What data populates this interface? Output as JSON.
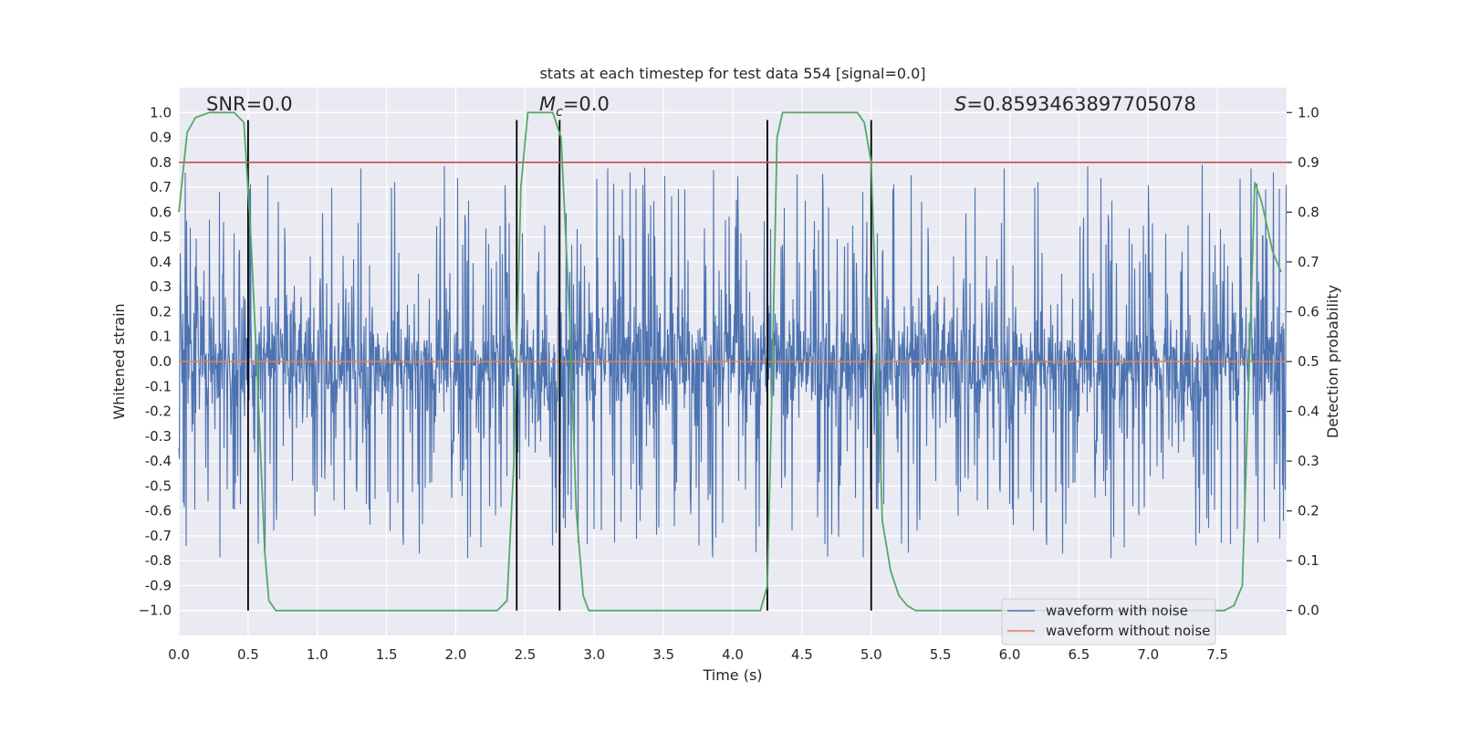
{
  "chart_data": {
    "type": "line",
    "title": "stats at each timestep for test data 554 [signal=0.0]",
    "xlabel": "Time (s)",
    "ylabel": "Whitened strain",
    "y2label": "Detection probability",
    "xlim": [
      0.0,
      8.0
    ],
    "ylim": [
      -1.1,
      1.1
    ],
    "y2lim": [
      -0.05,
      1.05
    ],
    "xticks": [
      "0.0",
      "0.5",
      "1.0",
      "1.5",
      "2.0",
      "2.5",
      "3.0",
      "3.5",
      "4.0",
      "4.5",
      "5.0",
      "5.5",
      "6.0",
      "6.5",
      "7.0",
      "7.5"
    ],
    "yticks": [
      "1.0",
      "0.9",
      "0.8",
      "0.7",
      "0.6",
      "0.5",
      "0.4",
      "0.3",
      "0.2",
      "0.1",
      "0.0",
      "-0.1",
      "-0.2",
      "-0.3",
      "-0.4",
      "-0.5",
      "-0.6",
      "-0.7",
      "-0.8",
      "-0.9",
      "−1.0"
    ],
    "y2ticks": [
      "1.0",
      "0.9",
      "0.8",
      "0.7",
      "0.6",
      "0.5",
      "0.4",
      "0.3",
      "0.2",
      "0.1",
      "0.0"
    ],
    "grid": true,
    "legend": {
      "placement": "lower-right",
      "entries": [
        {
          "name": "waveform with noise",
          "color": "#4c72b0"
        },
        {
          "name": "waveform without noise",
          "color": "#dd8452"
        }
      ]
    },
    "annotations": {
      "snr": "SNR=0.0",
      "mc_symbol": "M",
      "mc_sub": "c",
      "mc_value": "=0.0",
      "s_symbol": "S",
      "s_value": "=0.8593463897705078"
    },
    "series": [
      {
        "name": "waveform with noise",
        "color": "#4c72b0",
        "kind": "noise",
        "seed": 554,
        "core_amplitude": 0.36,
        "peak_amplitude_range": [
          0.5,
          0.8
        ],
        "y_range": [
          -1.0,
          0.95
        ]
      },
      {
        "name": "waveform without noise",
        "color": "#dd8452",
        "x": [
          0.0,
          8.0
        ],
        "y": [
          0.0,
          0.0
        ]
      },
      {
        "name": "detection probability",
        "axis": "right",
        "color": "#55a868",
        "x": [
          0.0,
          0.06,
          0.12,
          0.22,
          0.3,
          0.4,
          0.47,
          0.52,
          0.57,
          0.62,
          0.65,
          0.7,
          0.75,
          2.3,
          2.37,
          2.42,
          2.47,
          2.52,
          2.56,
          2.7,
          2.76,
          2.82,
          2.87,
          2.92,
          2.96,
          3.0,
          4.2,
          4.25,
          4.28,
          4.32,
          4.36,
          4.42,
          4.9,
          4.95,
          5.0,
          5.04,
          5.08,
          5.14,
          5.2,
          5.26,
          5.32,
          7.55,
          7.62,
          7.68,
          7.72,
          7.77,
          7.82,
          7.9,
          7.96
        ],
        "y": [
          0.8,
          0.96,
          0.99,
          1.0,
          1.0,
          1.0,
          0.98,
          0.75,
          0.45,
          0.12,
          0.02,
          0.0,
          0.0,
          0.0,
          0.02,
          0.3,
          0.85,
          1.0,
          1.0,
          1.0,
          0.95,
          0.6,
          0.2,
          0.03,
          0.0,
          0.0,
          0.0,
          0.05,
          0.4,
          0.95,
          1.0,
          1.0,
          1.0,
          0.98,
          0.9,
          0.55,
          0.18,
          0.08,
          0.03,
          0.01,
          0.0,
          0.0,
          0.01,
          0.05,
          0.4,
          0.86,
          0.82,
          0.72,
          0.68
        ]
      },
      {
        "name": "threshold",
        "axis": "right",
        "color": "#c44e52",
        "x": [
          0.0,
          8.0
        ],
        "y": [
          0.9,
          0.9
        ]
      }
    ],
    "vertical_lines": {
      "color": "#000000",
      "x": [
        0.5,
        2.44,
        2.75,
        4.25,
        5.0
      ],
      "y_range": [
        -1.0,
        0.97
      ]
    }
  }
}
